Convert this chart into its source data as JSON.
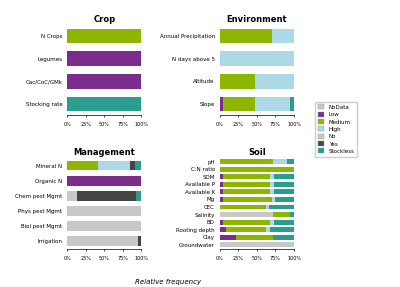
{
  "colors": {
    "NoData": "#c8c8c8",
    "Low": "#7b2d8b",
    "Medium": "#8db600",
    "High": "#add8e6",
    "No": "#c8c8c8",
    "Yes": "#444444",
    "Stockless": "#2a9d8f"
  },
  "legend_labels": [
    "NoData",
    "Low",
    "Medium",
    "High",
    "No",
    "Yes",
    "Stockless"
  ],
  "legend_colors_ordered": [
    "#c8c8c8",
    "#7b2d8b",
    "#8db600",
    "#add8e6",
    "#c8c8c8",
    "#444444",
    "#2a9d8f"
  ],
  "crop": {
    "title": "Crop",
    "categories": [
      "N Crops",
      "Legumes",
      "Cac/CoC/GMk",
      "Stocking rate"
    ],
    "data": {
      "NoData": [
        0,
        0,
        0,
        0
      ],
      "Low": [
        0,
        100,
        100,
        0
      ],
      "Medium": [
        100,
        0,
        0,
        0
      ],
      "High": [
        0,
        0,
        0,
        0
      ],
      "No": [
        0,
        0,
        0,
        0
      ],
      "Yes": [
        0,
        0,
        0,
        0
      ],
      "Stockless": [
        0,
        0,
        0,
        100
      ]
    }
  },
  "environment": {
    "title": "Environment",
    "categories": [
      "Annual Precipitation",
      "N days above 5",
      "Altitude",
      "Slope"
    ],
    "data": {
      "NoData": [
        0,
        0,
        0,
        0
      ],
      "Low": [
        0,
        0,
        0,
        5
      ],
      "Medium": [
        70,
        0,
        48,
        42
      ],
      "High": [
        30,
        100,
        52,
        48
      ],
      "No": [
        0,
        0,
        0,
        0
      ],
      "Yes": [
        0,
        0,
        0,
        0
      ],
      "Stockless": [
        0,
        0,
        0,
        5
      ]
    }
  },
  "management": {
    "title": "Management",
    "categories": [
      "Mineral N",
      "Organic N",
      "Chem pest Mgmt",
      "Phys pest Mgmt",
      "Biol pest Mgmt",
      "Irrigation"
    ],
    "data": {
      "NoData": [
        0,
        0,
        0,
        100,
        100,
        95
      ],
      "Low": [
        0,
        100,
        0,
        0,
        0,
        0
      ],
      "Medium": [
        42,
        0,
        0,
        0,
        0,
        0
      ],
      "High": [
        42,
        0,
        0,
        0,
        0,
        0
      ],
      "No": [
        0,
        0,
        13,
        0,
        0,
        0
      ],
      "Yes": [
        8,
        0,
        80,
        0,
        0,
        5
      ],
      "Stockless": [
        8,
        0,
        7,
        0,
        0,
        0
      ]
    }
  },
  "soil": {
    "title": "Soil",
    "categories": [
      "pH",
      "C:N ratio",
      "SOM",
      "Available P",
      "Available K",
      "Mg",
      "CEC",
      "Salinity",
      "BD",
      "Rooting depth",
      "Clay",
      "Groundwater"
    ],
    "data": {
      "NoData": [
        0,
        0,
        0,
        0,
        0,
        0,
        0,
        72,
        0,
        0,
        0,
        100
      ],
      "Low": [
        0,
        0,
        5,
        5,
        5,
        5,
        0,
        0,
        5,
        8,
        22,
        0
      ],
      "Medium": [
        72,
        100,
        63,
        63,
        63,
        65,
        62,
        23,
        63,
        55,
        50,
        0
      ],
      "High": [
        18,
        0,
        5,
        5,
        5,
        5,
        5,
        0,
        5,
        5,
        0,
        0
      ],
      "No": [
        0,
        0,
        0,
        0,
        0,
        0,
        0,
        0,
        0,
        0,
        0,
        0
      ],
      "Yes": [
        0,
        0,
        0,
        0,
        0,
        0,
        0,
        0,
        0,
        0,
        0,
        0
      ],
      "Stockless": [
        10,
        0,
        27,
        27,
        27,
        25,
        33,
        5,
        27,
        32,
        28,
        0
      ]
    }
  },
  "xlabel": "Relative frequency"
}
